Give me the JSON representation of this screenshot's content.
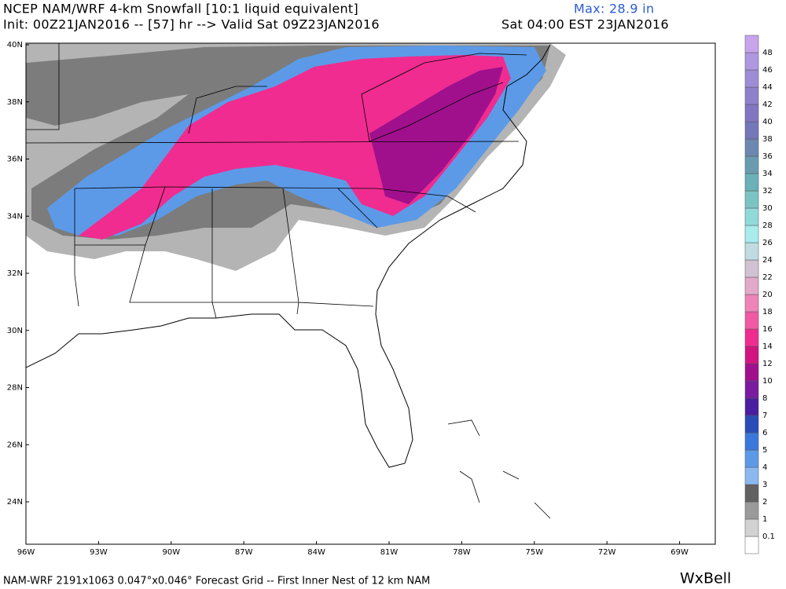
{
  "header": {
    "title": "NCEP NAM/WRF 4-km Snowfall [10:1 liquid equivalent]",
    "init": "Init: 00Z21JAN2016 -- [57] hr --> Valid Sat 09Z23JAN2016",
    "max": "Max: 28.9 in",
    "valid_local": "Sat 04:00 EST 23JAN2016"
  },
  "map": {
    "lat_labels": [
      "40N",
      "38N",
      "36N",
      "34N",
      "32N",
      "30N",
      "28N",
      "26N",
      "24N"
    ],
    "lon_labels": [
      "96W",
      "93W",
      "90W",
      "87W",
      "84W",
      "81W",
      "78W",
      "75W",
      "72W",
      "69W"
    ]
  },
  "colorbar": {
    "labels": [
      "0.1",
      "1",
      "2",
      "3",
      "4",
      "5",
      "6",
      "7",
      "8",
      "10",
      "12",
      "14",
      "16",
      "18",
      "20",
      "22",
      "24",
      "26",
      "28",
      "30",
      "32",
      "34",
      "36",
      "38",
      "40",
      "42",
      "44",
      "46",
      "48"
    ],
    "colors": [
      "#ffffff",
      "#d2d2d2",
      "#9a9a9a",
      "#626262",
      "#8cb8f0",
      "#5c9ae8",
      "#3a78dc",
      "#2a4cb8",
      "#4a1ea0",
      "#7a1aa0",
      "#a0108c",
      "#d21480",
      "#f02c90",
      "#f05aa4",
      "#ee84b8",
      "#e0aac8",
      "#d0c2d2",
      "#bedce2",
      "#a8ecec",
      "#90dada",
      "#7cc4c4",
      "#6cb0b8",
      "#6a9cb0",
      "#6c88b0",
      "#7478b8",
      "#8276c2",
      "#9080cc",
      "#9e8cd6",
      "#ae98e0",
      "#c8a4ec"
    ]
  },
  "footer": {
    "grid": "NAM-WRF 2191x1063 0.047°x0.046° Forecast Grid -- First Inner Nest of 12 km NAM",
    "logo": "WxBell"
  }
}
